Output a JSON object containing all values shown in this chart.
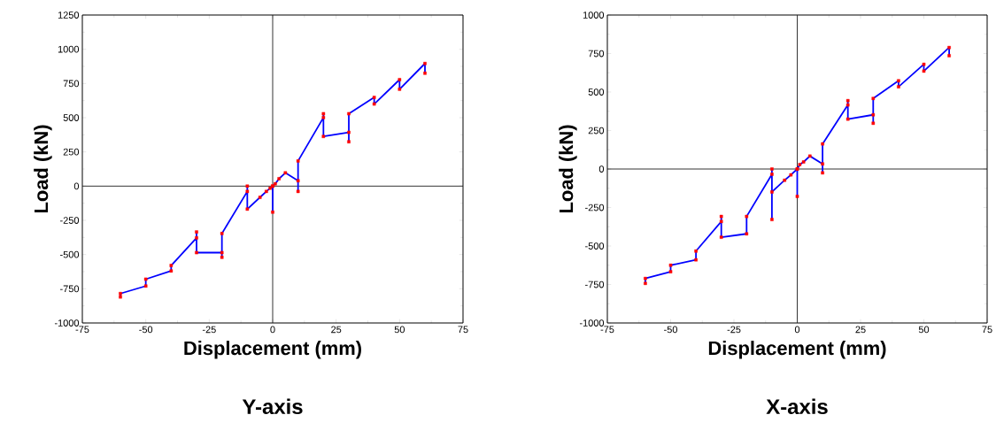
{
  "chart_data": [
    {
      "type": "line",
      "title": "Y-axis",
      "xlabel": "Displacement (mm)",
      "ylabel": "Load (kN)",
      "xlim": [
        -75,
        75
      ],
      "xticks": [
        -75,
        -50,
        -25,
        0,
        25,
        50,
        75
      ],
      "ylim": [
        -1000,
        1250
      ],
      "yticks": [
        -1000,
        -750,
        -500,
        -250,
        0,
        250,
        500,
        750,
        1000,
        1250
      ],
      "series": [
        {
          "color": "#0000ff",
          "marker": "none",
          "line_style": "solid",
          "x": [
            -60,
            -60,
            -50,
            -50,
            -40,
            -40,
            -30,
            -30,
            -30,
            -20,
            -20,
            -20,
            -10,
            -10,
            -10,
            -5,
            -2.5,
            -1,
            0,
            0,
            0,
            1,
            2.5,
            5,
            10,
            10,
            10,
            20,
            20,
            20,
            30,
            30,
            30,
            40,
            40,
            50,
            50,
            60,
            60
          ],
          "values": [
            -810,
            -785,
            -730,
            -680,
            -620,
            -580,
            -378,
            -335,
            -486,
            -486,
            -520,
            -346,
            -39,
            0,
            -168,
            -82,
            -39,
            -15,
            0,
            -190,
            0,
            17,
            54,
            97,
            39,
            -39,
            184,
            501,
            529,
            363,
            393,
            324,
            529,
            648,
            600,
            778,
            708,
            896,
            825
          ]
        },
        {
          "type": "scatter",
          "color": "#ff0000",
          "marker": "square",
          "x": [
            -60,
            -60,
            -50,
            -50,
            -40,
            -40,
            -30,
            -30,
            -30,
            -20,
            -20,
            -20,
            -10,
            -10,
            -10,
            -5,
            -2.5,
            -1,
            0,
            0,
            0,
            1,
            2.5,
            5,
            10,
            10,
            10,
            20,
            20,
            20,
            30,
            30,
            30,
            40,
            40,
            50,
            50,
            60,
            60
          ],
          "values": [
            -810,
            -785,
            -730,
            -680,
            -620,
            -580,
            -378,
            -335,
            -486,
            -486,
            -520,
            -346,
            -39,
            0,
            -168,
            -82,
            -39,
            -15,
            0,
            -190,
            0,
            17,
            54,
            97,
            39,
            -39,
            184,
            501,
            529,
            363,
            393,
            324,
            529,
            648,
            600,
            778,
            708,
            896,
            825
          ]
        }
      ]
    },
    {
      "type": "line",
      "title": "X-axis",
      "xlabel": "Displacement (mm)",
      "ylabel": "Load (kN)",
      "xlim": [
        -75,
        75
      ],
      "xticks": [
        -75,
        -50,
        -25,
        0,
        25,
        50,
        75
      ],
      "ylim": [
        -1000,
        1000
      ],
      "yticks": [
        -1000,
        -750,
        -500,
        -250,
        0,
        250,
        500,
        750,
        1000
      ],
      "series": [
        {
          "color": "#0000ff",
          "marker": "none",
          "line_style": "solid",
          "x": [
            -60,
            -60,
            -50,
            -50,
            -40,
            -40,
            -30,
            -30,
            -30,
            -20,
            -20,
            -10,
            -10,
            -10,
            -10,
            -5,
            -2.5,
            0,
            0,
            0,
            1,
            2.5,
            5,
            10,
            10,
            10,
            20,
            20,
            20,
            30,
            30,
            30,
            40,
            40,
            50,
            50,
            60,
            60
          ],
          "values": [
            -743,
            -711,
            -667,
            -625,
            -590,
            -533,
            -341,
            -308,
            -443,
            -421,
            -308,
            -34,
            0,
            -328,
            -149,
            -73,
            -38,
            0,
            -178,
            0,
            29,
            46,
            84,
            33,
            -25,
            163,
            416,
            444,
            324,
            352,
            297,
            458,
            573,
            534,
            680,
            636,
            789,
            736
          ]
        },
        {
          "type": "scatter",
          "color": "#ff0000",
          "marker": "square",
          "x": [
            -60,
            -60,
            -50,
            -50,
            -40,
            -40,
            -30,
            -30,
            -30,
            -20,
            -20,
            -10,
            -10,
            -10,
            -10,
            -5,
            -2.5,
            0,
            0,
            0,
            1,
            2.5,
            5,
            10,
            10,
            10,
            20,
            20,
            20,
            30,
            30,
            30,
            40,
            40,
            50,
            50,
            60,
            60
          ],
          "values": [
            -743,
            -711,
            -667,
            -625,
            -590,
            -533,
            -341,
            -308,
            -443,
            -421,
            -308,
            -34,
            0,
            -328,
            -149,
            -73,
            -38,
            0,
            -178,
            0,
            29,
            46,
            84,
            33,
            -25,
            163,
            416,
            444,
            324,
            352,
            297,
            458,
            573,
            534,
            680,
            636,
            789,
            736
          ]
        }
      ]
    }
  ]
}
